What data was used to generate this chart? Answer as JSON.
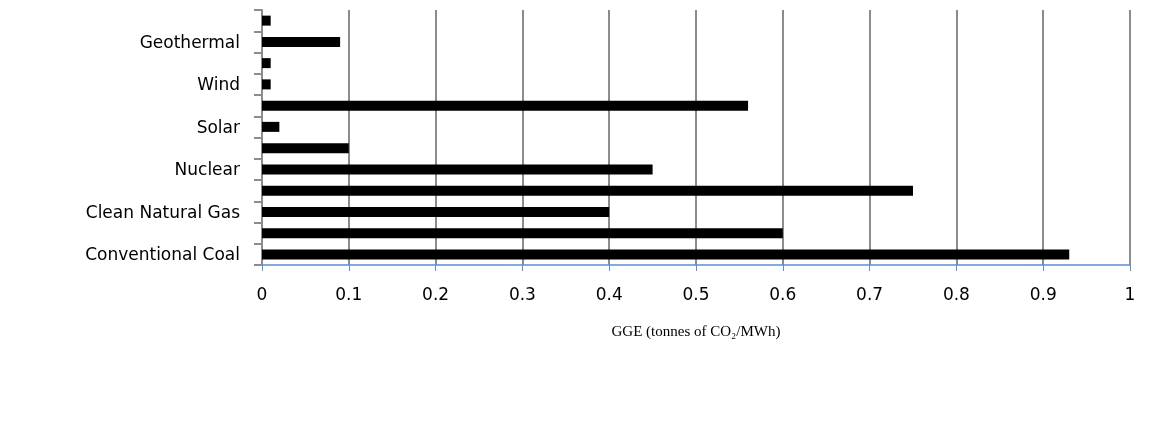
{
  "chart_data": {
    "type": "bar",
    "orientation": "horizontal",
    "xlabel": "GGE (tonnes of CO₂/MWh)",
    "categories": [
      null,
      "Geothermal",
      null,
      "Wind",
      null,
      "Solar",
      null,
      "Nuclear",
      null,
      "Clean Natural Gas",
      null,
      "Conventional Coal"
    ],
    "values": [
      0.01,
      0.09,
      0.01,
      0.01,
      0.56,
      0.02,
      0.1,
      0.45,
      0.75,
      0.4,
      0.6,
      0.93
    ],
    "color": "#000000",
    "xlim": [
      0,
      1
    ],
    "xticks": [
      0,
      0.1,
      0.2,
      0.3,
      0.4,
      0.5,
      0.6,
      0.7,
      0.8,
      0.9,
      1
    ],
    "grid": "x"
  }
}
